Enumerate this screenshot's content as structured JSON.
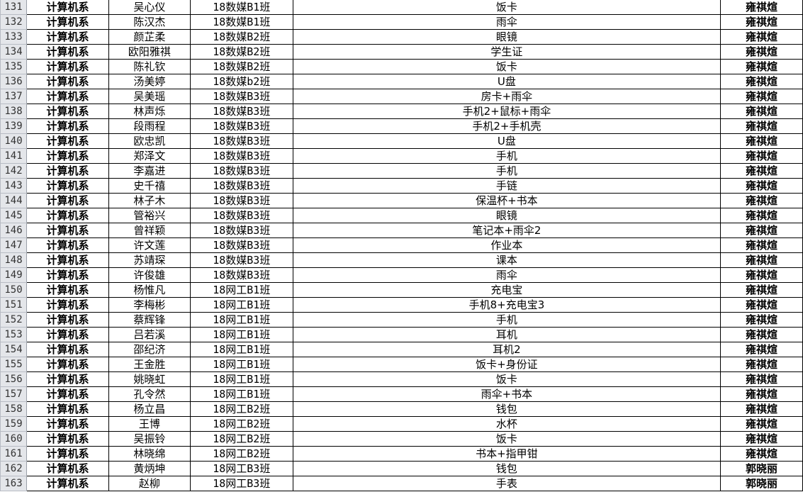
{
  "sheet": {
    "rows": [
      {
        "row": "131",
        "dept": "计算机系",
        "name": "吴心仪",
        "class": "18数媒B1班",
        "item": "饭卡",
        "teacher": "雍祺煊"
      },
      {
        "row": "132",
        "dept": "计算机系",
        "name": "陈汉杰",
        "class": "18数媒B1班",
        "item": "雨伞",
        "teacher": "雍祺煊"
      },
      {
        "row": "133",
        "dept": "计算机系",
        "name": "颜芷柔",
        "class": "18数媒B2班",
        "item": "眼镜",
        "teacher": "雍祺煊"
      },
      {
        "row": "134",
        "dept": "计算机系",
        "name": "欧阳雅祺",
        "class": "18数媒B2班",
        "item": "学生证",
        "teacher": "雍祺煊"
      },
      {
        "row": "135",
        "dept": "计算机系",
        "name": "陈礼钦",
        "class": "18数媒B2班",
        "item": "饭卡",
        "teacher": "雍祺煊"
      },
      {
        "row": "136",
        "dept": "计算机系",
        "name": "汤美婷",
        "class": "18数媒b2班",
        "item": "U盘",
        "teacher": "雍祺煊"
      },
      {
        "row": "137",
        "dept": "计算机系",
        "name": "吴美瑶",
        "class": "18数媒B3班",
        "item": "房卡+雨伞",
        "teacher": "雍祺煊"
      },
      {
        "row": "138",
        "dept": "计算机系",
        "name": "林声烁",
        "class": "18数媒B3班",
        "item": "手机2+鼠标+雨伞",
        "teacher": "雍祺煊"
      },
      {
        "row": "139",
        "dept": "计算机系",
        "name": "段雨程",
        "class": "18数媒B3班",
        "item": "手机2+手机壳",
        "teacher": "雍祺煊"
      },
      {
        "row": "140",
        "dept": "计算机系",
        "name": "欧忠凯",
        "class": "18数媒B3班",
        "item": "U盘",
        "teacher": "雍祺煊"
      },
      {
        "row": "141",
        "dept": "计算机系",
        "name": "郑泽文",
        "class": "18数媒B3班",
        "item": "手机",
        "teacher": "雍祺煊"
      },
      {
        "row": "142",
        "dept": "计算机系",
        "name": "李嘉进",
        "class": "18数媒B3班",
        "item": "手机",
        "teacher": "雍祺煊"
      },
      {
        "row": "143",
        "dept": "计算机系",
        "name": "史千禧",
        "class": "18数媒B3班",
        "item": "手链",
        "teacher": "雍祺煊"
      },
      {
        "row": "144",
        "dept": "计算机系",
        "name": "林子木",
        "class": "18数媒B3班",
        "item": "保温杯+书本",
        "teacher": "雍祺煊"
      },
      {
        "row": "145",
        "dept": "计算机系",
        "name": "管裕兴",
        "class": "18数媒B3班",
        "item": "眼镜",
        "teacher": "雍祺煊"
      },
      {
        "row": "146",
        "dept": "计算机系",
        "name": "曾祥颖",
        "class": "18数媒B3班",
        "item": "笔记本+雨伞2",
        "teacher": "雍祺煊"
      },
      {
        "row": "147",
        "dept": "计算机系",
        "name": "许文莲",
        "class": "18数媒B3班",
        "item": "作业本",
        "teacher": "雍祺煊"
      },
      {
        "row": "148",
        "dept": "计算机系",
        "name": "苏靖琛",
        "class": "18数媒B3班",
        "item": "课本",
        "teacher": "雍祺煊"
      },
      {
        "row": "149",
        "dept": "计算机系",
        "name": "许俊雄",
        "class": "18数媒B3班",
        "item": "雨伞",
        "teacher": "雍祺煊"
      },
      {
        "row": "150",
        "dept": "计算机系",
        "name": "杨惟凡",
        "class": "18网工B1班",
        "item": "充电宝",
        "teacher": "雍祺煊"
      },
      {
        "row": "151",
        "dept": "计算机系",
        "name": "李梅彬",
        "class": "18网工B1班",
        "item": "手机8+充电宝3",
        "teacher": "雍祺煊"
      },
      {
        "row": "152",
        "dept": "计算机系",
        "name": "蔡辉锋",
        "class": "18网工B1班",
        "item": "手机",
        "teacher": "雍祺煊"
      },
      {
        "row": "153",
        "dept": "计算机系",
        "name": "吕若溪",
        "class": "18网工B1班",
        "item": "耳机",
        "teacher": "雍祺煊"
      },
      {
        "row": "154",
        "dept": "计算机系",
        "name": "邵纪济",
        "class": "18网工B1班",
        "item": "耳机2",
        "teacher": "雍祺煊"
      },
      {
        "row": "155",
        "dept": "计算机系",
        "name": "王金胜",
        "class": "18网工B1班",
        "item": "饭卡+身份证",
        "teacher": "雍祺煊"
      },
      {
        "row": "156",
        "dept": "计算机系",
        "name": "姚晓虹",
        "class": "18网工B1班",
        "item": "饭卡",
        "teacher": "雍祺煊"
      },
      {
        "row": "157",
        "dept": "计算机系",
        "name": "孔令然",
        "class": "18网工B1班",
        "item": "雨伞+书本",
        "teacher": "雍祺煊"
      },
      {
        "row": "158",
        "dept": "计算机系",
        "name": "杨立昌",
        "class": "18网工B2班",
        "item": "钱包",
        "teacher": "雍祺煊"
      },
      {
        "row": "159",
        "dept": "计算机系",
        "name": "王博",
        "class": "18网工B2班",
        "item": "水杯",
        "teacher": "雍祺煊"
      },
      {
        "row": "160",
        "dept": "计算机系",
        "name": "吴振铃",
        "class": "18网工B2班",
        "item": "饭卡",
        "teacher": "雍祺煊"
      },
      {
        "row": "161",
        "dept": "计算机系",
        "name": "林晓绵",
        "class": "18网工B2班",
        "item": "书本+指甲钳",
        "teacher": "雍祺煊"
      },
      {
        "row": "162",
        "dept": "计算机系",
        "name": "黄炳坤",
        "class": "18网工B3班",
        "item": "钱包",
        "teacher": "郭晓丽"
      },
      {
        "row": "163",
        "dept": "计算机系",
        "name": "赵柳",
        "class": "18网工B3班",
        "item": "手表",
        "teacher": "郭晓丽"
      }
    ]
  }
}
